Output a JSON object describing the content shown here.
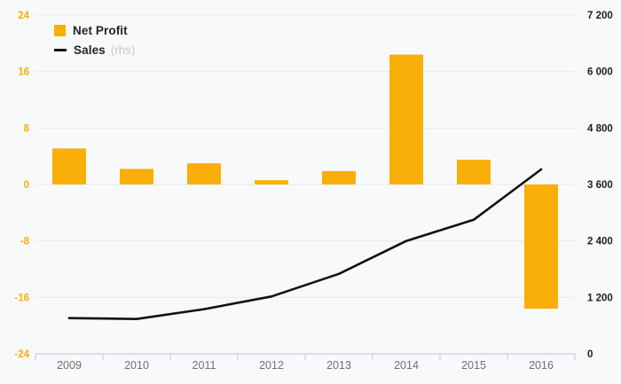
{
  "page": {
    "background": "#f8f9fa"
  },
  "legend": {
    "net_profit_label": "Net Profit",
    "sales_label": "Sales",
    "sales_suffix": "(rhs)"
  },
  "chart_data": {
    "type": "bar",
    "subtype": "bar+line combo, dual axis",
    "categories": [
      "2009",
      "2010",
      "2011",
      "2012",
      "2013",
      "2014",
      "2015",
      "2016"
    ],
    "series": [
      {
        "name": "Net Profit",
        "type": "bar",
        "axis": "left",
        "color": "#FAAE08",
        "values": [
          5.1,
          2.2,
          3.0,
          0.6,
          1.9,
          18.4,
          3.5,
          -17.6
        ]
      },
      {
        "name": "Sales (rhs)",
        "type": "line",
        "axis": "right",
        "color": "#111111",
        "values": [
          760,
          740,
          950,
          1220,
          1700,
          2400,
          2850,
          3920
        ]
      }
    ],
    "left_axis": {
      "min": -24,
      "max": 24,
      "ticks": [
        24,
        16,
        8,
        0,
        -8,
        -16,
        -24
      ],
      "tick_labels": [
        "24",
        "16",
        "8",
        "0",
        "-8",
        "-16",
        "-24"
      ],
      "label_color": "#FAAE08"
    },
    "right_axis": {
      "min": 0,
      "max": 7200,
      "ticks": [
        7200,
        6000,
        4800,
        3600,
        2400,
        1200,
        0
      ],
      "tick_labels": [
        "7 200",
        "6 000",
        "4 800",
        "3 600",
        "2 400",
        "1 200",
        "0"
      ],
      "label_color": "#1f1f1f"
    },
    "x_axis": {
      "label_color": "#707070",
      "axis_color": "#c9cfdb"
    },
    "grid": true,
    "gridline_color": "#e8e9eb",
    "legend_position": "top-left"
  }
}
